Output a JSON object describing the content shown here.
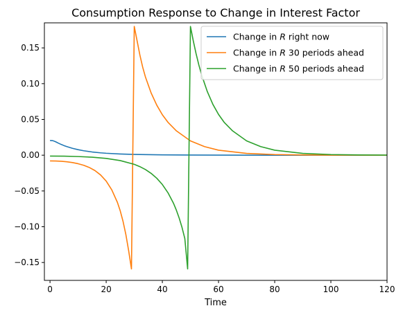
{
  "chart_data": {
    "type": "line",
    "title": "Consumption Response to Change in Interest Factor",
    "xlabel": "Time",
    "ylabel": "",
    "xlim": [
      -2,
      120
    ],
    "ylim": [
      -0.175,
      0.185
    ],
    "x_ticks": [
      0,
      20,
      40,
      60,
      80,
      100,
      120
    ],
    "y_ticks": [
      -0.15,
      -0.1,
      -0.05,
      0.0,
      0.05,
      0.1,
      0.15
    ],
    "x_tick_labels": [
      "0",
      "20",
      "40",
      "60",
      "80",
      "100",
      "120"
    ],
    "y_tick_labels": [
      "−0.15",
      "−0.10",
      "−0.05",
      "0.00",
      "0.05",
      "0.10",
      "0.15"
    ],
    "grid": false,
    "legend_position": "top-right",
    "series": [
      {
        "name": "Change in R right now",
        "legend_prefix": "Change in ",
        "legend_symbol": "R",
        "legend_suffix": " right now",
        "color": "#1f77b4",
        "x": [
          0,
          1,
          2,
          3,
          4,
          5,
          6,
          8,
          10,
          12,
          15,
          18,
          20,
          25,
          30,
          40,
          50,
          60,
          80,
          100,
          120
        ],
        "values": [
          0.0205,
          0.0203,
          0.0188,
          0.0168,
          0.015,
          0.0134,
          0.012,
          0.0096,
          0.0077,
          0.0062,
          0.0045,
          0.0033,
          0.0027,
          0.0017,
          0.0011,
          0.0005,
          0.0002,
          0.0001,
          0.0,
          0.0,
          0.0
        ]
      },
      {
        "name": "Change in R 30 periods ahead",
        "legend_prefix": "Change in ",
        "legend_symbol": "R",
        "legend_suffix": " 30 periods ahead",
        "color": "#ff7f0e",
        "x": [
          0,
          2,
          4,
          6,
          8,
          10,
          12,
          14,
          16,
          18,
          20,
          22,
          24,
          25,
          26,
          27,
          28,
          29,
          30,
          31,
          32,
          33,
          34,
          36,
          38,
          40,
          42,
          45,
          50,
          55,
          60,
          70,
          80,
          90,
          100,
          120
        ],
        "values": [
          -0.008,
          -0.0081,
          -0.0085,
          -0.0092,
          -0.0103,
          -0.0119,
          -0.0141,
          -0.0172,
          -0.0215,
          -0.0276,
          -0.0362,
          -0.0485,
          -0.066,
          -0.0778,
          -0.0925,
          -0.1108,
          -0.1335,
          -0.159,
          0.18,
          0.16,
          0.14,
          0.123,
          0.109,
          0.087,
          0.07,
          0.0565,
          0.046,
          0.034,
          0.02,
          0.012,
          0.007,
          0.0025,
          0.0009,
          0.0003,
          0.0001,
          0.0
        ]
      },
      {
        "name": "Change in R 50 periods ahead",
        "legend_prefix": "Change in ",
        "legend_symbol": "R",
        "legend_suffix": " 50 periods ahead",
        "color": "#2ca02c",
        "x": [
          0,
          5,
          10,
          15,
          20,
          25,
          30,
          32,
          34,
          36,
          38,
          40,
          42,
          44,
          45,
          46,
          47,
          48,
          49,
          50,
          51,
          52,
          53,
          54,
          56,
          58,
          60,
          62,
          65,
          70,
          75,
          80,
          90,
          100,
          110,
          120
        ],
        "values": [
          -0.0012,
          -0.0014,
          -0.0019,
          -0.0028,
          -0.0045,
          -0.0075,
          -0.0128,
          -0.016,
          -0.0201,
          -0.0254,
          -0.0322,
          -0.041,
          -0.0525,
          -0.0675,
          -0.077,
          -0.088,
          -0.101,
          -0.1165,
          -0.159,
          0.18,
          0.16,
          0.142,
          0.126,
          0.112,
          0.089,
          0.071,
          0.057,
          0.046,
          0.034,
          0.02,
          0.012,
          0.007,
          0.0025,
          0.0009,
          0.0003,
          0.0001
        ]
      }
    ]
  }
}
